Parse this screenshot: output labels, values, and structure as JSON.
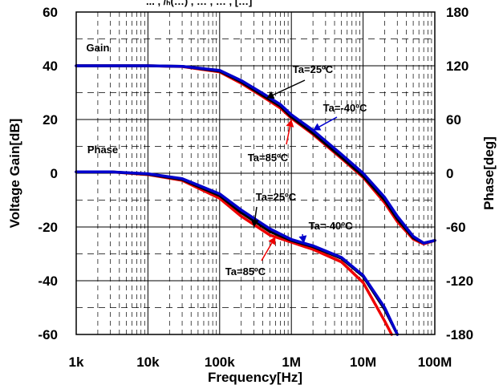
{
  "chart_data": {
    "type": "line",
    "title_fragment": "... , /ₕ(…) , … , … , […]",
    "xlabel": "Frequency[Hz]",
    "ylabel_left": "Voltage Gain[dB]",
    "ylabel_right": "Phase[deg]",
    "x_scale": "log",
    "xlim": [
      1000,
      100000000
    ],
    "ylim_left": [
      -60,
      60
    ],
    "ylim_right": [
      -180,
      180
    ],
    "x_ticks": [
      {
        "value": 1000,
        "label": "1k"
      },
      {
        "value": 10000,
        "label": "10k"
      },
      {
        "value": 100000,
        "label": "100k"
      },
      {
        "value": 1000000,
        "label": "1M"
      },
      {
        "value": 10000000,
        "label": "10M"
      },
      {
        "value": 100000000,
        "label": "100M"
      }
    ],
    "y_left_ticks": [
      "60",
      "40",
      "20",
      "0",
      "-20",
      "-40",
      "-60"
    ],
    "y_right_ticks": [
      "180",
      "120",
      "60",
      "0",
      "-60",
      "-120",
      "-180"
    ],
    "grid": true,
    "colors": {
      "ta_25": "#000000",
      "ta_m40": "#0000cc",
      "ta_85": "#ee0000"
    },
    "group_labels": {
      "gain": "Gain",
      "phase": "Phase"
    },
    "series": [
      {
        "name": "Ta=25ºC",
        "kind": "gain",
        "color": "#000000",
        "points": [
          [
            1000,
            40
          ],
          [
            10000,
            40
          ],
          [
            30000,
            39.8
          ],
          [
            100000,
            38
          ],
          [
            200000,
            34
          ],
          [
            400000,
            29
          ],
          [
            700000,
            25
          ],
          [
            1000000,
            21
          ],
          [
            2000000,
            15
          ],
          [
            3000000,
            11
          ],
          [
            5000000,
            6
          ],
          [
            10000000,
            -1
          ],
          [
            20000000,
            -10
          ],
          [
            30000000,
            -17
          ],
          [
            50000000,
            -24
          ],
          [
            70000000,
            -26
          ],
          [
            100000000,
            -25
          ]
        ]
      },
      {
        "name": "Ta=-40ºC",
        "kind": "gain",
        "color": "#0000cc",
        "points": [
          [
            1000,
            40
          ],
          [
            10000,
            40
          ],
          [
            30000,
            39.8
          ],
          [
            100000,
            38.3
          ],
          [
            200000,
            34.5
          ],
          [
            400000,
            29.7
          ],
          [
            700000,
            25.6
          ],
          [
            1000000,
            21.8
          ],
          [
            2000000,
            16
          ],
          [
            3000000,
            12
          ],
          [
            5000000,
            7
          ],
          [
            10000000,
            0
          ],
          [
            20000000,
            -9
          ],
          [
            30000000,
            -16
          ],
          [
            50000000,
            -23.5
          ],
          [
            70000000,
            -26
          ],
          [
            100000000,
            -25
          ]
        ]
      },
      {
        "name": "Ta=85ºC",
        "kind": "gain",
        "color": "#ee0000",
        "points": [
          [
            1000,
            40
          ],
          [
            10000,
            40
          ],
          [
            30000,
            39.7
          ],
          [
            100000,
            37.7
          ],
          [
            200000,
            33.5
          ],
          [
            400000,
            28.5
          ],
          [
            700000,
            24.3
          ],
          [
            1000000,
            20.5
          ],
          [
            2000000,
            14.5
          ],
          [
            3000000,
            10.5
          ],
          [
            5000000,
            5.5
          ],
          [
            10000000,
            -1.5
          ],
          [
            20000000,
            -11
          ],
          [
            30000000,
            -18
          ],
          [
            50000000,
            -24.5
          ],
          [
            70000000,
            -26.3
          ],
          [
            100000000,
            -25
          ]
        ]
      },
      {
        "name": "Ta=25ºC",
        "kind": "phase",
        "color": "#000000",
        "points": [
          [
            1000,
            1.5
          ],
          [
            3000,
            1.5
          ],
          [
            10000,
            -1
          ],
          [
            30000,
            -7
          ],
          [
            100000,
            -25
          ],
          [
            200000,
            -44
          ],
          [
            500000,
            -65
          ],
          [
            1000000,
            -75
          ],
          [
            2000000,
            -82
          ],
          [
            5000000,
            -95
          ],
          [
            10000000,
            -115
          ],
          [
            20000000,
            -152
          ],
          [
            30000000,
            -180
          ]
        ]
      },
      {
        "name": "Ta=-40ºC",
        "kind": "phase",
        "color": "#0000cc",
        "points": [
          [
            1000,
            1.5
          ],
          [
            3000,
            1.5
          ],
          [
            10000,
            -0.5
          ],
          [
            30000,
            -6
          ],
          [
            100000,
            -23
          ],
          [
            200000,
            -41
          ],
          [
            500000,
            -62
          ],
          [
            1000000,
            -74
          ],
          [
            2000000,
            -81
          ],
          [
            5000000,
            -94
          ],
          [
            10000000,
            -114
          ],
          [
            20000000,
            -150
          ],
          [
            30000000,
            -180
          ]
        ]
      },
      {
        "name": "Ta=85ºC",
        "kind": "phase",
        "color": "#ee0000",
        "points": [
          [
            1000,
            1.5
          ],
          [
            3000,
            1.5
          ],
          [
            10000,
            -1.5
          ],
          [
            30000,
            -8
          ],
          [
            100000,
            -28
          ],
          [
            200000,
            -48
          ],
          [
            500000,
            -69
          ],
          [
            1000000,
            -77
          ],
          [
            2000000,
            -85
          ],
          [
            5000000,
            -99
          ],
          [
            10000000,
            -122
          ],
          [
            20000000,
            -165
          ],
          [
            25000000,
            -180
          ]
        ]
      }
    ],
    "annotations": [
      {
        "text": "Ta=25ºC",
        "color": "#000000",
        "tip_f": 450000,
        "tip_v": 28,
        "axis": "left"
      },
      {
        "text": "Ta=-40ºC",
        "color": "#0000cc",
        "tip_f": 2000000,
        "tip_v": 16,
        "axis": "left"
      },
      {
        "text": "Ta=85ºC",
        "color": "#ee0000",
        "tip_f": 1000000,
        "tip_v": 20,
        "axis": "left"
      },
      {
        "text": "Ta=25ºC",
        "color": "#000000",
        "tip_f": 300000,
        "tip_v": -60,
        "axis": "right"
      },
      {
        "text": "Ta=-40ºC",
        "color": "#0000cc",
        "tip_f": 1500000,
        "tip_v": -78,
        "axis": "right"
      },
      {
        "text": "Ta=85ºC",
        "color": "#ee0000",
        "tip_f": 600000,
        "tip_v": -71,
        "axis": "right"
      }
    ]
  }
}
